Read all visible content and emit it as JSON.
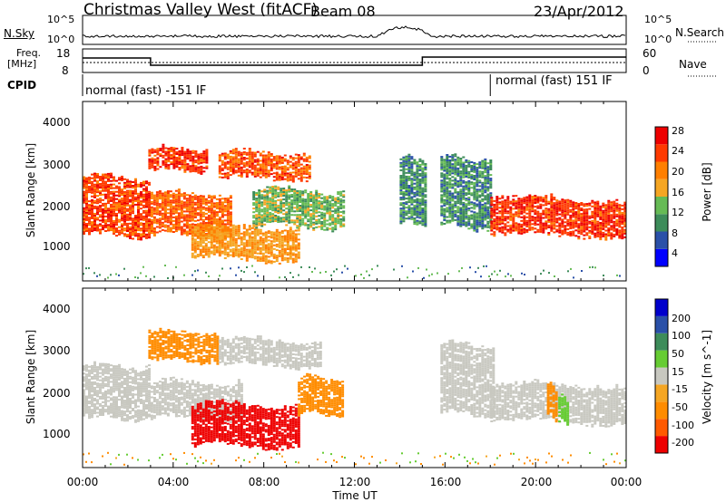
{
  "header": {
    "station": "Christmas Valley West (fitACF)",
    "beam": "Beam 08",
    "date": "23/Apr/2012"
  },
  "noise_panel": {
    "left_label": "N.Sky",
    "right_label": "N.Search",
    "left_ticks": [
      "10^5",
      "10^0"
    ],
    "right_ticks": [
      "10^5",
      "10^0"
    ]
  },
  "freq_panel": {
    "left_label_1": "Freq.",
    "left_label_2": "[MHz]",
    "right_label": "Nave",
    "left_ticks": [
      "18",
      "8"
    ],
    "right_ticks": [
      "60",
      "0"
    ]
  },
  "cpid_panel": {
    "label": "CPID",
    "modes": [
      "normal (fast) -151 IF",
      "normal (fast) 151 IF"
    ]
  },
  "x_axis": {
    "label": "Time UT",
    "ticks": [
      "00:00",
      "04:00",
      "08:00",
      "12:00",
      "16:00",
      "20:00",
      "00:00"
    ]
  },
  "colors": {
    "power_scale": [
      "#0000ff",
      "#2a50a8",
      "#3d8c5a",
      "#66bb55",
      "#f5a623",
      "#ff7f00",
      "#ff3a00",
      "#ee0000"
    ],
    "velocity_scale": [
      "#ee0000",
      "#ff5a00",
      "#ff8c00",
      "#f5a623",
      "#c8c8c0",
      "#66cc33",
      "#3d8c5a",
      "#2a50a8",
      "#0000cc"
    ],
    "ground_scatter": "#c8c8c0"
  },
  "chart_data": [
    {
      "type": "heatmap",
      "title": "",
      "xlabel": "Time UT",
      "ylabel": "Slant Range [km]",
      "x_range_hours": [
        0,
        24
      ],
      "ylim": [
        180,
        4600
      ],
      "yticks": [
        "1000",
        "2000",
        "3000",
        "4000"
      ],
      "colorbar": {
        "label": "Power [dB]",
        "ticks": [
          "4",
          "8",
          "12",
          "16",
          "20",
          "24",
          "28"
        ],
        "range": [
          0,
          32
        ]
      },
      "features": [
        {
          "t0": 0.0,
          "t1": 2.9,
          "r0": 1300,
          "r1": 2700,
          "value": 26
        },
        {
          "t0": 2.9,
          "t1": 5.5,
          "r0": 2900,
          "r1": 3400,
          "value": 27
        },
        {
          "t0": 3.0,
          "t1": 6.5,
          "r0": 1300,
          "r1": 2300,
          "value": 24
        },
        {
          "t0": 4.8,
          "t1": 9.5,
          "r0": 700,
          "r1": 1500,
          "value": 20
        },
        {
          "t0": 6.0,
          "t1": 10.0,
          "r0": 2700,
          "r1": 3300,
          "value": 25
        },
        {
          "t0": 7.5,
          "t1": 11.5,
          "r0": 1500,
          "r1": 2400,
          "value": 14
        },
        {
          "t0": 14.0,
          "t1": 15.2,
          "r0": 1600,
          "r1": 3200,
          "value": 10
        },
        {
          "t0": 15.8,
          "t1": 18.0,
          "r0": 1500,
          "r1": 3200,
          "value": 10
        },
        {
          "t0": 18.0,
          "t1": 24.0,
          "r0": 1300,
          "r1": 2200,
          "value": 27
        }
      ]
    },
    {
      "type": "heatmap",
      "title": "",
      "xlabel": "Time UT",
      "ylabel": "Slant Range [km]",
      "x_range_hours": [
        0,
        24
      ],
      "ylim": [
        180,
        4600
      ],
      "yticks": [
        "1000",
        "2000",
        "3000",
        "4000"
      ],
      "colorbar": {
        "label": "Velocity [m s^-1]",
        "ticks": [
          "200",
          "100",
          "50",
          "15",
          "-15",
          "-50",
          "-100",
          "-200"
        ],
        "range": [
          -250,
          250
        ]
      },
      "features": [
        {
          "t0": 0.0,
          "t1": 2.9,
          "r0": 1400,
          "r1": 2700,
          "value": 0
        },
        {
          "t0": 2.9,
          "t1": 6.0,
          "r0": 2800,
          "r1": 3500,
          "value": -60
        },
        {
          "t0": 3.0,
          "t1": 7.0,
          "r0": 1400,
          "r1": 2300,
          "value": 0
        },
        {
          "t0": 4.8,
          "t1": 9.5,
          "r0": 700,
          "r1": 1700,
          "value": -210
        },
        {
          "t0": 6.0,
          "t1": 10.5,
          "r0": 2700,
          "r1": 3300,
          "value": 0
        },
        {
          "t0": 9.5,
          "t1": 11.5,
          "r0": 1500,
          "r1": 2400,
          "value": -60
        },
        {
          "t0": 15.8,
          "t1": 18.2,
          "r0": 1500,
          "r1": 3200,
          "value": 0
        },
        {
          "t0": 18.0,
          "t1": 24.0,
          "r0": 1300,
          "r1": 2200,
          "value": 0
        },
        {
          "t0": 20.5,
          "t1": 20.9,
          "r0": 1400,
          "r1": 2200,
          "value": -70
        },
        {
          "t0": 21.0,
          "t1": 21.4,
          "r0": 1300,
          "r1": 1900,
          "value": 40
        }
      ]
    }
  ]
}
